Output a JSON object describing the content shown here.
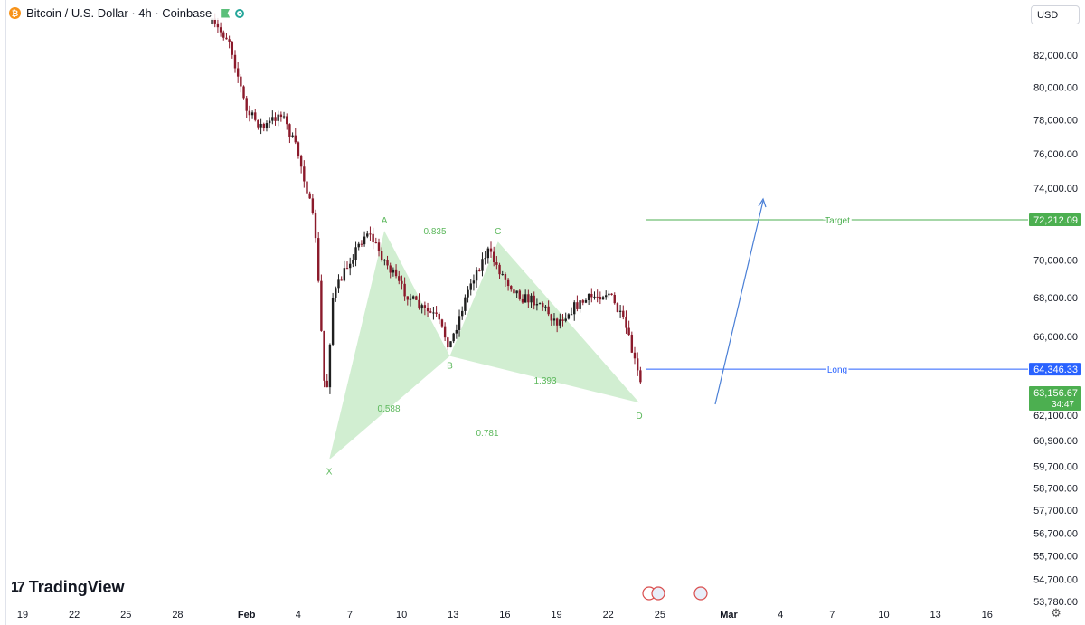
{
  "header": {
    "symbol_title": "Bitcoin / U.S. Dollar · 4h · Coinbase",
    "coin_icon_glyph": "₿"
  },
  "currency_selector": {
    "label": "USD"
  },
  "logo": {
    "text": "TradingView",
    "mark": "17"
  },
  "colors": {
    "pattern_fill": "#c9ebc9",
    "pattern_text": "#5cb85c",
    "target_line": "#4caf50",
    "long_line": "#2962ff",
    "arrow": "#4a7fd6",
    "candle_up": "#1f1f1f",
    "candle_down": "#8b1a2b",
    "last_price_badge": "#4caf50"
  },
  "chart_data": {
    "type": "candlestick",
    "title": "Bitcoin / U.S. Dollar · 4h · Coinbase",
    "x_axis": {
      "ticks": [
        "19",
        "22",
        "25",
        "28",
        "Feb",
        "4",
        "7",
        "10",
        "13",
        "16",
        "19",
        "22",
        "25",
        "Mar",
        "4",
        "7",
        "10",
        "13",
        "16"
      ],
      "bold_ticks": [
        "Feb",
        "Mar"
      ]
    },
    "y_axis": {
      "scale": "log",
      "ticks": [
        82000,
        80000,
        78000,
        76000,
        74000,
        70000,
        68000,
        66000,
        62100,
        60900,
        59700,
        58700,
        57700,
        56700,
        55700,
        54700,
        53780
      ],
      "tick_labels": [
        "82,000.00",
        "80,000.00",
        "78,000.00",
        "76,000.00",
        "74,000.00",
        "70,000.00",
        "68,000.00",
        "66,000.00",
        "62,100.00",
        "60,900.00",
        "59,700.00",
        "58,700.00",
        "57,700.00",
        "56,700.00",
        "55,700.00",
        "54,700.00",
        "53,780.00"
      ],
      "range": [
        53700,
        84500
      ]
    },
    "price_path": [
      {
        "date": "Jan 30",
        "price": 84000
      },
      {
        "date": "Jan 31",
        "price": 83000
      },
      {
        "date": "Feb 1",
        "price": 78500
      },
      {
        "date": "Feb 2",
        "price": 77500
      },
      {
        "date": "Feb 3",
        "price": 78500
      },
      {
        "date": "Feb 4",
        "price": 76000
      },
      {
        "date": "Feb 4.5",
        "price": 74000
      },
      {
        "date": "Feb 5",
        "price": 71500
      },
      {
        "date": "Feb 5.6",
        "price": 62500
      },
      {
        "date": "Feb 6",
        "price": 68000
      },
      {
        "date": "Feb 7",
        "price": 70000
      },
      {
        "date": "Feb 8",
        "price": 71600
      },
      {
        "date": "Feb 9",
        "price": 70000
      },
      {
        "date": "Feb 10",
        "price": 68500
      },
      {
        "date": "Feb 11",
        "price": 67500
      },
      {
        "date": "Feb 12",
        "price": 67000
      },
      {
        "date": "Feb 12.8",
        "price": 65500
      },
      {
        "date": "Feb 14",
        "price": 68800
      },
      {
        "date": "Feb 15",
        "price": 70500
      },
      {
        "date": "Feb 16",
        "price": 69000
      },
      {
        "date": "Feb 17",
        "price": 68000
      },
      {
        "date": "Feb 18",
        "price": 67800
      },
      {
        "date": "Feb 19",
        "price": 66700
      },
      {
        "date": "Feb 20",
        "price": 67500
      },
      {
        "date": "Feb 21",
        "price": 68000
      },
      {
        "date": "Feb 22",
        "price": 68300
      },
      {
        "date": "Feb 23",
        "price": 66500
      },
      {
        "date": "Feb 24",
        "price": 63200
      }
    ],
    "harmonic_pattern": {
      "points": [
        {
          "label": "X",
          "price": 60000
        },
        {
          "label": "A",
          "price": 71600
        },
        {
          "label": "B",
          "price": 65000
        },
        {
          "label": "C",
          "price": 71000
        },
        {
          "label": "D",
          "price": 62700
        }
      ],
      "ratios": [
        {
          "label": "0.588",
          "leg": "XB"
        },
        {
          "label": "0.835",
          "leg": "AC"
        },
        {
          "label": "0.781",
          "leg": "XD"
        },
        {
          "label": "1.393",
          "leg": "BD"
        }
      ]
    },
    "levels": [
      {
        "name": "Target",
        "price": 72212.09,
        "badge": "72,212.09"
      },
      {
        "name": "Long",
        "price": 64346.33,
        "badge": "64,346.33"
      }
    ],
    "last_price": {
      "value": "63,156.67",
      "countdown": "34:47",
      "partial_label": "63,156.67"
    }
  }
}
